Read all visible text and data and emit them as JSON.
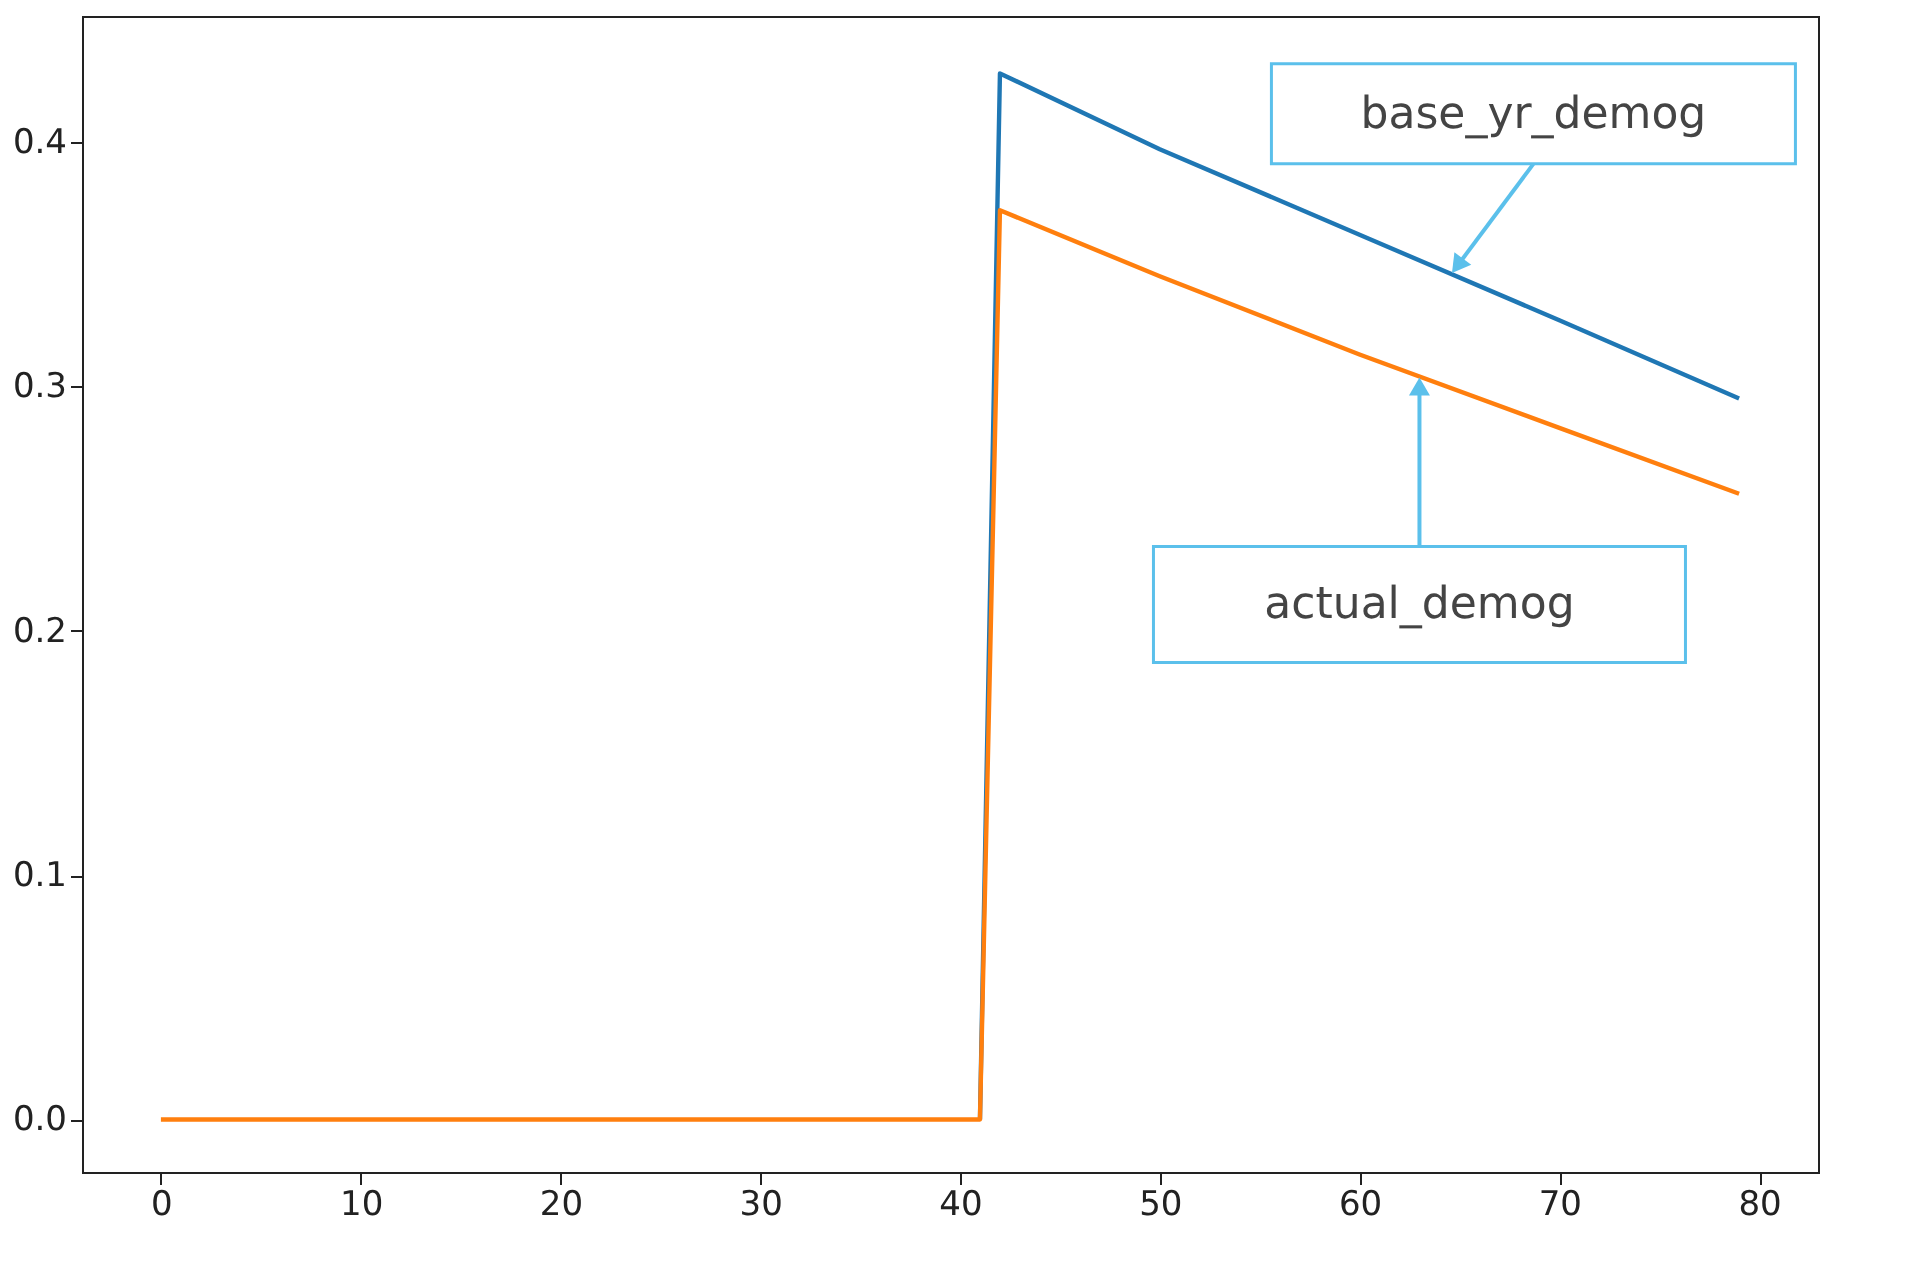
{
  "chart_data": {
    "type": "line",
    "x": [
      0,
      10,
      20,
      30,
      41,
      42,
      50,
      60,
      70,
      79
    ],
    "series": [
      {
        "color": "#1f77b4",
        "values": [
          null,
          null,
          null,
          null,
          0,
          0.428,
          0.397,
          0.362,
          0.327,
          0.295
        ]
      },
      {
        "color": "#ff7f0e",
        "values": [
          0,
          0,
          0,
          0,
          0,
          0.372,
          0.345,
          0.313,
          0.283,
          0.256
        ]
      }
    ],
    "xlim": [
      -3.95,
      82.95
    ],
    "ylim": [
      -0.0215,
      0.4515
    ],
    "xticks": [
      0,
      10,
      20,
      30,
      40,
      50,
      60,
      70,
      80
    ],
    "yticks": [
      {
        "value": 0,
        "label": "0.0"
      },
      {
        "value": 0.1,
        "label": "0.1"
      },
      {
        "value": 0.2,
        "label": "0.2"
      },
      {
        "value": 0.3,
        "label": "0.3"
      },
      {
        "value": 0.4,
        "label": "0.4"
      }
    ],
    "grid": false,
    "annotations": [
      {
        "text": "base_yr_demog",
        "x": 64.6,
        "y": 0.346
      },
      {
        "text": "actual_demog",
        "x": 63,
        "y": 0.304
      }
    ]
  }
}
